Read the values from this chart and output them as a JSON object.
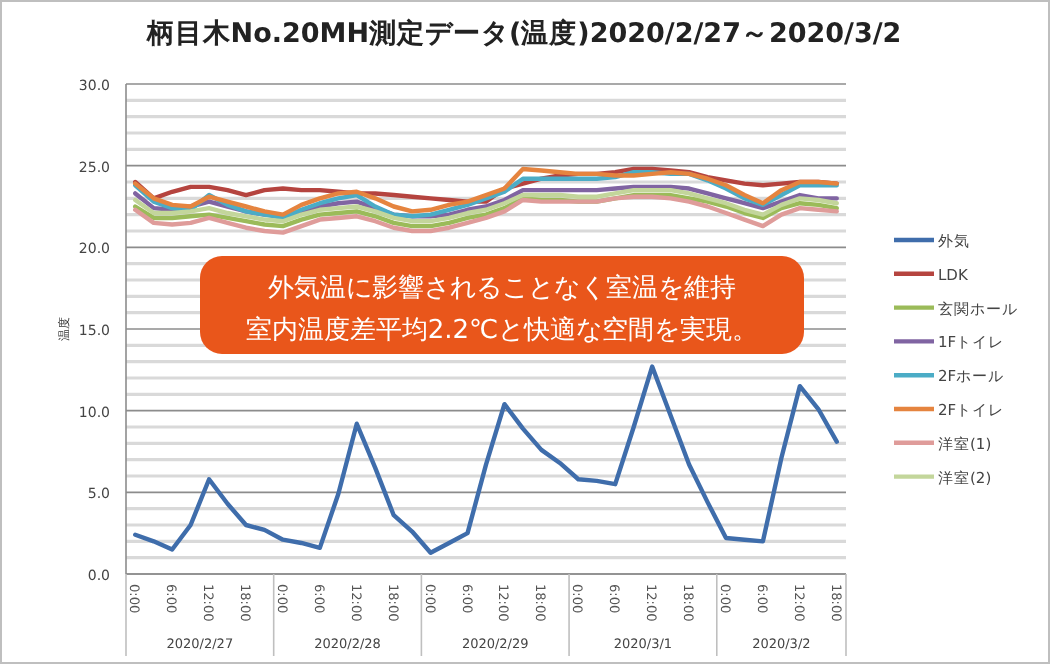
{
  "chart_data": {
    "type": "line",
    "title": "柄目木No.20MH測定データ(温度)2020/2/27～2020/3/2",
    "ylabel": "温度",
    "categories": [
      "0:00",
      null,
      "6:00",
      null,
      "12:00",
      null,
      "18:00",
      null,
      "0:00",
      null,
      "6:00",
      null,
      "12:00",
      null,
      "18:00",
      null,
      "0:00",
      null,
      "6:00",
      null,
      "12:00",
      null,
      "18:00",
      null,
      "0:00",
      null,
      "6:00",
      null,
      "12:00",
      null,
      "18:00",
      null,
      "0:00",
      null,
      "6:00",
      null,
      "12:00",
      null,
      "18:00"
    ],
    "annotations": [
      "外気温に影響されることなく室温を維持",
      "室内温度差平均2.2℃と快適な空間を実現。",
      "2020/2/27",
      "2020/2/28",
      "2020/2/29",
      "2020/3/1",
      "2020/3/2"
    ],
    "ylim": [
      0,
      30
    ],
    "yticks": [
      {
        "value": 0,
        "label": "0.0"
      },
      {
        "value": 1,
        "label": null
      },
      {
        "value": 2,
        "label": null
      },
      {
        "value": 3,
        "label": null
      },
      {
        "value": 4,
        "label": null
      },
      {
        "value": 5,
        "label": "5.0"
      },
      {
        "value": 6,
        "label": null
      },
      {
        "value": 7,
        "label": null
      },
      {
        "value": 8,
        "label": null
      },
      {
        "value": 9,
        "label": null
      },
      {
        "value": 10,
        "label": "10.0"
      },
      {
        "value": 11,
        "label": null
      },
      {
        "value": 12,
        "label": null
      },
      {
        "value": 13,
        "label": null
      },
      {
        "value": 14,
        "label": null
      },
      {
        "value": 15,
        "label": "15.0"
      },
      {
        "value": 16,
        "label": null
      },
      {
        "value": 17,
        "label": null
      },
      {
        "value": 18,
        "label": null
      },
      {
        "value": 19,
        "label": null
      },
      {
        "value": 20,
        "label": "20.0"
      },
      {
        "value": 21,
        "label": null
      },
      {
        "value": 22,
        "label": null
      },
      {
        "value": 23,
        "label": null
      },
      {
        "value": 24,
        "label": null
      },
      {
        "value": 25,
        "label": "25.0"
      },
      {
        "value": 26,
        "label": null
      },
      {
        "value": 27,
        "label": null
      },
      {
        "value": 28,
        "label": null
      },
      {
        "value": 29,
        "label": null
      },
      {
        "value": 30,
        "label": "30.0"
      }
    ],
    "grid": "y",
    "legend": "right",
    "marker": "none",
    "line_style": "solid",
    "series": [
      {
        "name": "外気",
        "color": "#3f6dab",
        "values": [
          2.4,
          2.0,
          1.5,
          3.0,
          5.8,
          4.3,
          3.0,
          2.7,
          2.1,
          1.9,
          1.6,
          4.9,
          9.2,
          6.5,
          3.6,
          2.6,
          1.3,
          1.9,
          2.5,
          6.7,
          10.4,
          8.9,
          7.6,
          6.8,
          5.8,
          5.7,
          5.5,
          9.0,
          12.7,
          9.7,
          6.7,
          4.4,
          2.2,
          2.1,
          2.0,
          7.1,
          11.5,
          10.1,
          8.1
        ]
      },
      {
        "name": "LDK",
        "color": "#b5443f",
        "values": [
          24.0,
          23.0,
          23.4,
          23.7,
          23.7,
          23.5,
          23.2,
          23.5,
          23.6,
          23.5,
          23.5,
          23.4,
          23.3,
          23.3,
          23.2,
          23.1,
          23.0,
          22.9,
          22.8,
          22.8,
          23.6,
          23.9,
          24.2,
          24.4,
          24.5,
          24.5,
          24.6,
          24.8,
          24.8,
          24.7,
          24.6,
          24.3,
          24.1,
          23.9,
          23.8,
          23.9,
          24.0,
          24.0,
          23.9
        ]
      },
      {
        "name": "玄関ホール",
        "color": "#9bbb59",
        "values": [
          22.5,
          21.8,
          21.8,
          21.9,
          22.0,
          21.8,
          21.6,
          21.4,
          21.3,
          21.7,
          22.0,
          22.1,
          22.2,
          21.9,
          21.5,
          21.3,
          21.3,
          21.5,
          21.8,
          22.0,
          22.4,
          23.0,
          22.9,
          22.9,
          22.8,
          22.8,
          23.0,
          23.2,
          23.2,
          23.2,
          23.0,
          22.8,
          22.5,
          22.1,
          21.8,
          22.4,
          22.7,
          22.6,
          22.4
        ]
      },
      {
        "name": "1Fトイレ",
        "color": "#8064a2",
        "values": [
          23.3,
          22.4,
          22.3,
          22.5,
          22.8,
          22.5,
          22.2,
          22.0,
          21.9,
          22.1,
          22.5,
          22.7,
          22.8,
          22.4,
          22.0,
          21.9,
          21.9,
          22.0,
          22.3,
          22.5,
          22.9,
          23.5,
          23.5,
          23.5,
          23.5,
          23.5,
          23.6,
          23.7,
          23.7,
          23.7,
          23.6,
          23.3,
          23.0,
          22.7,
          22.4,
          22.8,
          23.2,
          23.0,
          23.0
        ]
      },
      {
        "name": "2Fホール",
        "color": "#4bacc6",
        "values": [
          23.8,
          22.8,
          22.4,
          22.3,
          23.2,
          22.6,
          22.2,
          22.0,
          21.8,
          22.3,
          22.7,
          23.0,
          23.2,
          22.5,
          22.0,
          21.9,
          22.0,
          22.3,
          22.6,
          23.0,
          23.4,
          24.2,
          24.2,
          24.2,
          24.2,
          24.2,
          24.3,
          24.6,
          24.6,
          24.5,
          24.5,
          24.1,
          23.6,
          23.0,
          22.6,
          23.2,
          23.8,
          23.8,
          23.8
        ]
      },
      {
        "name": "2Fトイレ",
        "color": "#e5843f",
        "values": [
          23.9,
          23.0,
          22.6,
          22.5,
          23.1,
          22.8,
          22.5,
          22.2,
          22.0,
          22.6,
          23.0,
          23.3,
          23.4,
          23.0,
          22.5,
          22.2,
          22.3,
          22.6,
          22.8,
          23.2,
          23.6,
          24.8,
          24.7,
          24.6,
          24.5,
          24.5,
          24.4,
          24.4,
          24.5,
          24.6,
          24.5,
          24.2,
          23.8,
          23.2,
          22.7,
          23.5,
          24.0,
          24.0,
          23.9
        ]
      },
      {
        "name": "洋室(1)",
        "color": "#df9c9a",
        "values": [
          22.3,
          21.5,
          21.4,
          21.5,
          21.8,
          21.5,
          21.2,
          21.0,
          20.9,
          21.3,
          21.7,
          21.8,
          21.9,
          21.6,
          21.2,
          21.0,
          21.0,
          21.2,
          21.5,
          21.8,
          22.2,
          22.9,
          22.8,
          22.8,
          22.8,
          22.8,
          23.0,
          23.1,
          23.1,
          23.0,
          22.8,
          22.5,
          22.1,
          21.7,
          21.3,
          22.0,
          22.4,
          22.3,
          22.2
        ]
      },
      {
        "name": "洋室(2)",
        "color": "#c3d69b",
        "values": [
          22.9,
          22.1,
          22.1,
          22.2,
          22.4,
          22.1,
          21.9,
          21.7,
          21.6,
          22.0,
          22.3,
          22.4,
          22.5,
          22.2,
          21.8,
          21.6,
          21.6,
          21.8,
          22.1,
          22.3,
          22.7,
          23.2,
          23.2,
          23.2,
          23.1,
          23.1,
          23.3,
          23.5,
          23.5,
          23.5,
          23.3,
          23.0,
          22.7,
          22.3,
          22.0,
          22.6,
          23.0,
          22.9,
          22.7
        ]
      }
    ]
  }
}
